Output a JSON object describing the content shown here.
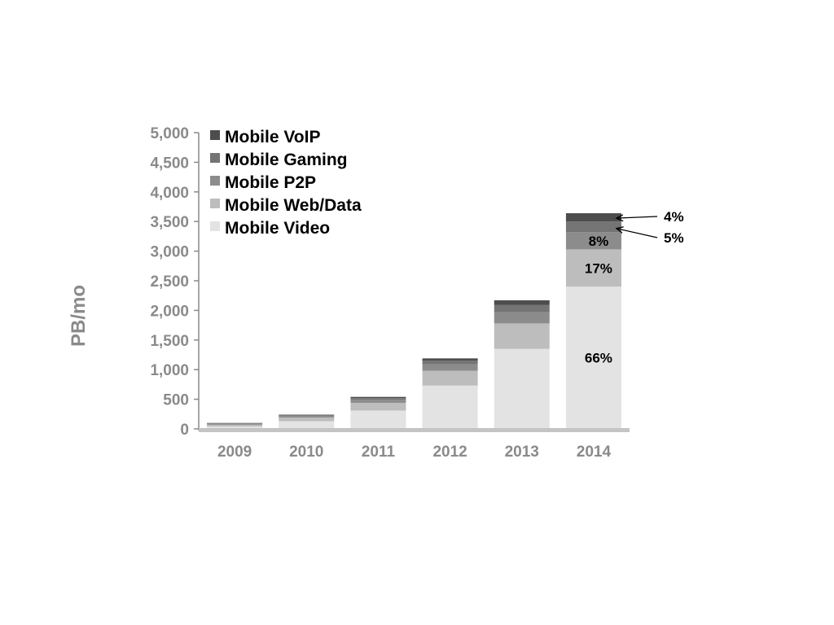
{
  "chart_data": {
    "type": "stacked-bar",
    "categories": [
      "2009",
      "2010",
      "2011",
      "2012",
      "2013",
      "2014"
    ],
    "ylabel": "PB/mo",
    "ylim": [
      0,
      5000
    ],
    "yticks": [
      0,
      500,
      1000,
      1500,
      2000,
      2500,
      3000,
      3500,
      4000,
      4500,
      5000
    ],
    "ytick_labels": [
      "0",
      "500",
      "1,000",
      "1,500",
      "2,000",
      "2,500",
      "3,000",
      "3,500",
      "4,000",
      "4,500",
      "5,000"
    ],
    "series": [
      {
        "name": "Mobile Video",
        "color": "#e3e3e3",
        "values": [
          40,
          130,
          310,
          730,
          1350,
          2400
        ]
      },
      {
        "name": "Mobile Web/Data",
        "color": "#bdbdbd",
        "values": [
          30,
          60,
          130,
          250,
          430,
          630
        ]
      },
      {
        "name": "Mobile P2P",
        "color": "#8c8c8c",
        "values": [
          15,
          25,
          50,
          110,
          190,
          290
        ]
      },
      {
        "name": "Mobile Gaming",
        "color": "#747474",
        "values": [
          10,
          15,
          30,
          60,
          120,
          180
        ]
      },
      {
        "name": "Mobile VoIP",
        "color": "#4d4d4d",
        "values": [
          5,
          10,
          20,
          40,
          80,
          140
        ]
      }
    ],
    "legend_order": [
      "Mobile VoIP",
      "Mobile Gaming",
      "Mobile P2P",
      "Mobile Web/Data",
      "Mobile Video"
    ],
    "legend_position": "top-left",
    "grid": false,
    "annotations": [
      {
        "text": "66%",
        "category": "2014",
        "series": "Mobile Video"
      },
      {
        "text": "17%",
        "category": "2014",
        "series": "Mobile Web/Data"
      },
      {
        "text": "8%",
        "category": "2014",
        "series": "Mobile P2P"
      },
      {
        "text": "5%",
        "category": "2014",
        "series": "Mobile Gaming",
        "with_arrow": true
      },
      {
        "text": "4%",
        "category": "2014",
        "series": "Mobile VoIP",
        "with_arrow": true
      }
    ]
  }
}
